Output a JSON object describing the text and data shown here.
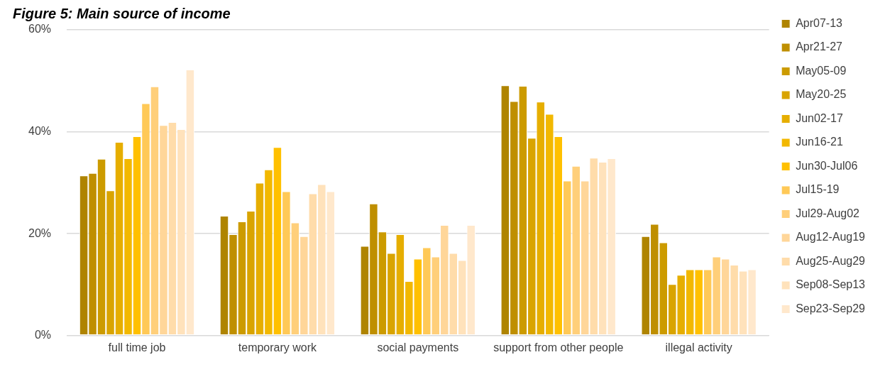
{
  "chart_data": {
    "type": "bar",
    "title": "Figure 5: Main source of income",
    "categories": [
      "full time job",
      "temporary work",
      "social payments",
      "support from other people",
      "illegal activity"
    ],
    "ylim": [
      0,
      60
    ],
    "yticks": [
      {
        "value": 0,
        "label": "0%"
      },
      {
        "value": 20,
        "label": "20%"
      },
      {
        "value": 40,
        "label": "40%"
      },
      {
        "value": 60,
        "label": "60%"
      }
    ],
    "grid": "y",
    "legend": "right",
    "series": [
      {
        "name": "Apr07-13",
        "color": "#af8400",
        "values": [
          31.4,
          23.5,
          17.6,
          49.1,
          19.5
        ]
      },
      {
        "name": "Apr21-27",
        "color": "#bf8f00",
        "values": [
          31.9,
          19.9,
          25.9,
          46.0,
          21.9
        ]
      },
      {
        "name": "May05-09",
        "color": "#cc9b00",
        "values": [
          34.7,
          22.4,
          20.4,
          49.0,
          18.3
        ]
      },
      {
        "name": "May20-25",
        "color": "#d9a400",
        "values": [
          28.5,
          24.5,
          16.2,
          38.8,
          10.1
        ]
      },
      {
        "name": "Jun02-17",
        "color": "#e6ae00",
        "values": [
          38.0,
          30.0,
          19.9,
          45.9,
          11.9
        ]
      },
      {
        "name": "Jun16-21",
        "color": "#f2b800",
        "values": [
          34.8,
          32.6,
          10.7,
          43.5,
          13.0
        ]
      },
      {
        "name": "Jun30-Jul06",
        "color": "#ffc000",
        "values": [
          39.1,
          37.0,
          15.1,
          39.1,
          13.0
        ]
      },
      {
        "name": "Jul15-19",
        "color": "#ffc957",
        "values": [
          45.6,
          28.3,
          17.3,
          30.4,
          13.0
        ]
      },
      {
        "name": "Jul29-Aug02",
        "color": "#ffcf7a",
        "values": [
          48.9,
          22.2,
          15.5,
          33.3,
          15.5
        ]
      },
      {
        "name": "Aug12-Aug19",
        "color": "#ffd699",
        "values": [
          41.3,
          19.5,
          21.7,
          30.4,
          15.1
        ]
      },
      {
        "name": "Aug25-Aug29",
        "color": "#ffdcaa",
        "values": [
          41.9,
          27.9,
          16.2,
          34.9,
          13.9
        ]
      },
      {
        "name": "Sep08-Sep13",
        "color": "#ffe2bb",
        "values": [
          40.5,
          29.7,
          14.8,
          34.1,
          12.7
        ]
      },
      {
        "name": "Sep23-Sep29",
        "color": "#ffe8cc",
        "values": [
          52.2,
          28.3,
          21.7,
          34.8,
          13.0
        ]
      }
    ]
  }
}
